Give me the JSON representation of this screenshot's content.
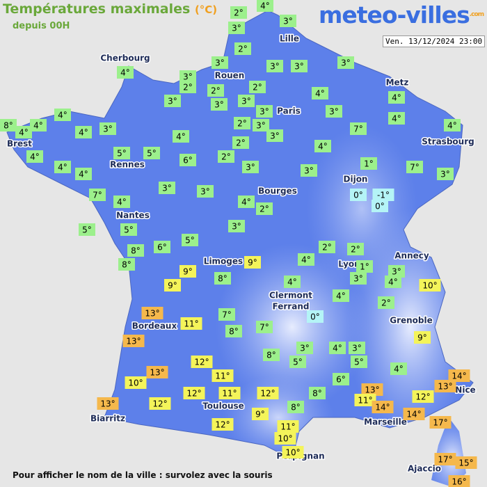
{
  "header": {
    "title": "Températures maximales",
    "unit": "(°C)",
    "subtitle": "depuis 00H",
    "logo": "meteo-villes",
    "logo_suffix": ".com",
    "timestamp": "Ven. 13/12/2024 23:00"
  },
  "cities": [
    "Lille",
    "Cherbourg",
    "Rouen",
    "Metz",
    "Paris",
    "Brest",
    "Strasbourg",
    "Rennes",
    "Dijon",
    "Bourges",
    "Nantes",
    "Annecy",
    "Limoges",
    "Lyon",
    "Clermont",
    "Ferrand",
    "Grenoble",
    "Bordeaux",
    "Nice",
    "Toulouse",
    "Biarritz",
    "Marseille",
    "Perpignan",
    "Ajaccio"
  ],
  "temperatures": [
    {
      "text": "4°",
      "color": "#9cf08c"
    },
    {
      "text": "2°",
      "color": "#9cf08c"
    },
    {
      "text": "3°",
      "color": "#9cf08c"
    },
    {
      "text": "3°",
      "color": "#9cf08c"
    },
    {
      "text": "2°",
      "color": "#9cf08c"
    },
    {
      "text": "3°",
      "color": "#9cf08c"
    },
    {
      "text": "3°",
      "color": "#9cf08c"
    },
    {
      "text": "3°",
      "color": "#9cf08c"
    },
    {
      "text": "3°",
      "color": "#9cf08c"
    },
    {
      "text": "4°",
      "color": "#9cf08c"
    },
    {
      "text": "3°",
      "color": "#9cf08c"
    },
    {
      "text": "2°",
      "color": "#9cf08c"
    },
    {
      "text": "2°",
      "color": "#9cf08c"
    },
    {
      "text": "2°",
      "color": "#9cf08c"
    },
    {
      "text": "3°",
      "color": "#9cf08c"
    },
    {
      "text": "3°",
      "color": "#9cf08c"
    },
    {
      "text": "3°",
      "color": "#9cf08c"
    },
    {
      "text": "4°",
      "color": "#9cf08c"
    },
    {
      "text": "4°",
      "color": "#9cf08c"
    },
    {
      "text": "4°",
      "color": "#9cf08c"
    },
    {
      "text": "3°",
      "color": "#9cf08c"
    },
    {
      "text": "3°",
      "color": "#9cf08c"
    },
    {
      "text": "4°",
      "color": "#9cf08c"
    },
    {
      "text": "8°",
      "color": "#9cf08c"
    },
    {
      "text": "4°",
      "color": "#9cf08c"
    },
    {
      "text": "4°",
      "color": "#9cf08c"
    },
    {
      "text": "4°",
      "color": "#9cf08c"
    },
    {
      "text": "3°",
      "color": "#9cf08c"
    },
    {
      "text": "2°",
      "color": "#9cf08c"
    },
    {
      "text": "3°",
      "color": "#9cf08c"
    },
    {
      "text": "4°",
      "color": "#9cf08c"
    },
    {
      "text": "3°",
      "color": "#9cf08c"
    },
    {
      "text": "7°",
      "color": "#9cf08c"
    },
    {
      "text": "4°",
      "color": "#9cf08c"
    },
    {
      "text": "2°",
      "color": "#9cf08c"
    },
    {
      "text": "5°",
      "color": "#9cf08c"
    },
    {
      "text": "5°",
      "color": "#9cf08c"
    },
    {
      "text": "4°",
      "color": "#9cf08c"
    },
    {
      "text": "4°",
      "color": "#9cf08c"
    },
    {
      "text": "6°",
      "color": "#9cf08c"
    },
    {
      "text": "2°",
      "color": "#9cf08c"
    },
    {
      "text": "4°",
      "color": "#9cf08c"
    },
    {
      "text": "4°",
      "color": "#9cf08c"
    },
    {
      "text": "3°",
      "color": "#9cf08c"
    },
    {
      "text": "3°",
      "color": "#9cf08c"
    },
    {
      "text": "1°",
      "color": "#9cf08c"
    },
    {
      "text": "7°",
      "color": "#9cf08c"
    },
    {
      "text": "3°",
      "color": "#9cf08c"
    },
    {
      "text": "3°",
      "color": "#9cf08c"
    },
    {
      "text": "3°",
      "color": "#9cf08c"
    },
    {
      "text": "7°",
      "color": "#9cf08c"
    },
    {
      "text": "0°",
      "color": "#b4f4f6"
    },
    {
      "text": "-1°",
      "color": "#b4f4f6"
    },
    {
      "text": "0°",
      "color": "#b4f4f6"
    },
    {
      "text": "4°",
      "color": "#9cf08c"
    },
    {
      "text": "4°",
      "color": "#9cf08c"
    },
    {
      "text": "2°",
      "color": "#9cf08c"
    },
    {
      "text": "5°",
      "color": "#9cf08c"
    },
    {
      "text": "5°",
      "color": "#9cf08c"
    },
    {
      "text": "3°",
      "color": "#9cf08c"
    },
    {
      "text": "6°",
      "color": "#9cf08c"
    },
    {
      "text": "5°",
      "color": "#9cf08c"
    },
    {
      "text": "8°",
      "color": "#9cf08c"
    },
    {
      "text": "2°",
      "color": "#9cf08c"
    },
    {
      "text": "2°",
      "color": "#9cf08c"
    },
    {
      "text": "8°",
      "color": "#9cf08c"
    },
    {
      "text": "9°",
      "color": "#f4f45a"
    },
    {
      "text": "4°",
      "color": "#9cf08c"
    },
    {
      "text": "1°",
      "color": "#9cf08c"
    },
    {
      "text": "3°",
      "color": "#9cf08c"
    },
    {
      "text": "9°",
      "color": "#f4f45a"
    },
    {
      "text": "4°",
      "color": "#9cf08c"
    },
    {
      "text": "3°",
      "color": "#9cf08c"
    },
    {
      "text": "8°",
      "color": "#9cf08c"
    },
    {
      "text": "9°",
      "color": "#f4f45a"
    },
    {
      "text": "4°",
      "color": "#9cf08c"
    },
    {
      "text": "10°",
      "color": "#f4f45a"
    },
    {
      "text": "4°",
      "color": "#9cf08c"
    },
    {
      "text": "2°",
      "color": "#9cf08c"
    },
    {
      "text": "0°",
      "color": "#b4f4f6"
    },
    {
      "text": "13°",
      "color": "#f5b84c"
    },
    {
      "text": "7°",
      "color": "#9cf08c"
    },
    {
      "text": "11°",
      "color": "#f4f45a"
    },
    {
      "text": "7°",
      "color": "#9cf08c"
    },
    {
      "text": "8°",
      "color": "#9cf08c"
    },
    {
      "text": "13°",
      "color": "#f5b84c"
    },
    {
      "text": "9°",
      "color": "#f4f45a"
    },
    {
      "text": "3°",
      "color": "#9cf08c"
    },
    {
      "text": "4°",
      "color": "#9cf08c"
    },
    {
      "text": "3°",
      "color": "#9cf08c"
    },
    {
      "text": "8°",
      "color": "#9cf08c"
    },
    {
      "text": "12°",
      "color": "#f4f45a"
    },
    {
      "text": "5°",
      "color": "#9cf08c"
    },
    {
      "text": "5°",
      "color": "#9cf08c"
    },
    {
      "text": "4°",
      "color": "#9cf08c"
    },
    {
      "text": "13°",
      "color": "#f5b84c"
    },
    {
      "text": "11°",
      "color": "#f4f45a"
    },
    {
      "text": "6°",
      "color": "#9cf08c"
    },
    {
      "text": "10°",
      "color": "#f4f45a"
    },
    {
      "text": "14°",
      "color": "#f5b84c"
    },
    {
      "text": "13°",
      "color": "#f5b84c"
    },
    {
      "text": "13°",
      "color": "#f5b84c"
    },
    {
      "text": "12°",
      "color": "#f4f45a"
    },
    {
      "text": "11°",
      "color": "#f4f45a"
    },
    {
      "text": "12°",
      "color": "#f4f45a"
    },
    {
      "text": "8°",
      "color": "#9cf08c"
    },
    {
      "text": "11°",
      "color": "#f4f45a"
    },
    {
      "text": "12°",
      "color": "#f4f45a"
    },
    {
      "text": "13°",
      "color": "#f5b84c"
    },
    {
      "text": "12°",
      "color": "#f4f45a"
    },
    {
      "text": "14°",
      "color": "#f5b84c"
    },
    {
      "text": "8°",
      "color": "#9cf08c"
    },
    {
      "text": "14°",
      "color": "#f5b84c"
    },
    {
      "text": "9°",
      "color": "#f4f45a"
    },
    {
      "text": "17°",
      "color": "#f5b84c"
    },
    {
      "text": "12°",
      "color": "#f4f45a"
    },
    {
      "text": "11°",
      "color": "#f4f45a"
    },
    {
      "text": "10°",
      "color": "#f4f45a"
    },
    {
      "text": "10°",
      "color": "#f4f45a"
    },
    {
      "text": "17°",
      "color": "#f5b84c"
    },
    {
      "text": "15°",
      "color": "#f5b84c"
    },
    {
      "text": "16°",
      "color": "#f5b84c"
    }
  ],
  "footer": "Pour afficher le nom de la ville : survolez avec la souris"
}
